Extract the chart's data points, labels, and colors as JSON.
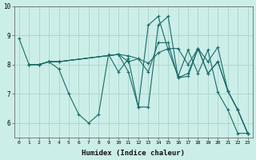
{
  "xlabel": "Humidex (Indice chaleur)",
  "bg_color": "#cceee8",
  "line_color": "#1a6b6b",
  "grid_color": "#aad4cc",
  "xlim": [
    -0.5,
    23.5
  ],
  "ylim": [
    5.5,
    10.0
  ],
  "xticks": [
    0,
    1,
    2,
    3,
    4,
    5,
    6,
    7,
    8,
    9,
    10,
    11,
    12,
    13,
    14,
    15,
    16,
    17,
    18,
    19,
    20,
    21,
    22,
    23
  ],
  "yticks": [
    6,
    7,
    8,
    9,
    10
  ],
  "lines": [
    {
      "x": [
        0,
        1,
        2,
        3,
        4,
        5,
        6,
        7,
        8,
        9,
        10,
        11,
        12,
        13,
        14,
        15,
        16,
        17,
        18,
        19,
        20,
        21,
        22,
        23
      ],
      "y": [
        8.9,
        8.0,
        8.0,
        8.1,
        7.85,
        7.0,
        6.3,
        6.0,
        6.3,
        8.35,
        7.75,
        8.2,
        6.55,
        9.35,
        9.65,
        8.5,
        7.6,
        8.5,
        7.7,
        8.5,
        7.05,
        6.45,
        5.65,
        5.65
      ]
    },
    {
      "x": [
        1,
        2,
        3,
        4,
        10,
        11,
        12,
        13,
        14,
        15,
        16,
        17,
        18,
        19,
        20,
        21,
        22,
        23
      ],
      "y": [
        8.0,
        8.0,
        8.1,
        8.1,
        8.35,
        8.3,
        8.2,
        8.05,
        8.4,
        8.55,
        8.55,
        8.0,
        8.55,
        8.1,
        8.6,
        7.1,
        6.45,
        5.65
      ]
    },
    {
      "x": [
        1,
        2,
        3,
        4,
        10,
        11,
        12,
        13,
        14,
        15,
        16,
        17,
        18,
        19,
        20,
        21,
        22,
        23
      ],
      "y": [
        8.0,
        8.0,
        8.1,
        8.1,
        8.35,
        7.75,
        6.55,
        6.55,
        9.35,
        9.65,
        7.55,
        7.6,
        8.55,
        7.7,
        8.1,
        7.1,
        6.45,
        5.65
      ]
    },
    {
      "x": [
        1,
        2,
        3,
        4,
        10,
        11,
        12,
        13,
        14,
        15,
        16,
        17,
        18,
        19,
        20,
        21,
        22,
        23
      ],
      "y": [
        8.0,
        8.0,
        8.1,
        8.1,
        8.35,
        8.1,
        8.2,
        7.75,
        8.75,
        8.75,
        7.55,
        7.7,
        8.55,
        7.7,
        8.1,
        7.1,
        6.45,
        5.65
      ]
    }
  ]
}
